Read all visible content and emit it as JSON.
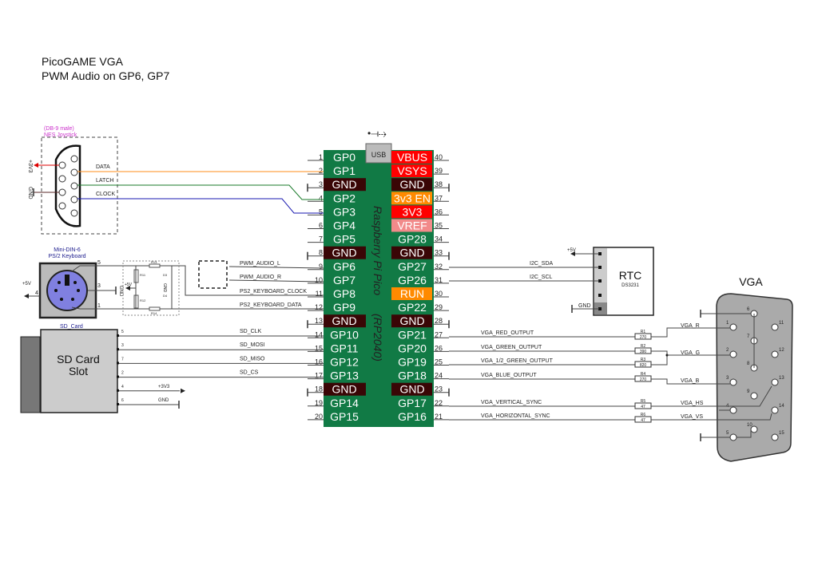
{
  "title": {
    "line1": "PicoGAME VGA",
    "line2": "PWM Audio on GP6, GP7"
  },
  "pico": {
    "label1": "Raspberry Pi Pico",
    "label2": "(RP2040)",
    "usb": "USB",
    "colors": {
      "board": "#117a45",
      "gnd": "#3a0606",
      "power": "#ff0000",
      "enable": "#ff8a00",
      "vref": "#f28a8a"
    },
    "left_pins": [
      {
        "num": "1",
        "name": "GP0",
        "type": "gpio"
      },
      {
        "num": "2",
        "name": "GP1",
        "type": "gpio"
      },
      {
        "num": "3",
        "name": "GND",
        "type": "gnd"
      },
      {
        "num": "4",
        "name": "GP2",
        "type": "gpio"
      },
      {
        "num": "5",
        "name": "GP3",
        "type": "gpio"
      },
      {
        "num": "6",
        "name": "GP4",
        "type": "gpio"
      },
      {
        "num": "7",
        "name": "GP5",
        "type": "gpio"
      },
      {
        "num": "8",
        "name": "GND",
        "type": "gnd"
      },
      {
        "num": "9",
        "name": "GP6",
        "type": "gpio"
      },
      {
        "num": "10",
        "name": "GP7",
        "type": "gpio"
      },
      {
        "num": "11",
        "name": "GP8",
        "type": "gpio"
      },
      {
        "num": "12",
        "name": "GP9",
        "type": "gpio"
      },
      {
        "num": "13",
        "name": "GND",
        "type": "gnd"
      },
      {
        "num": "14",
        "name": "GP10",
        "type": "gpio"
      },
      {
        "num": "15",
        "name": "GP11",
        "type": "gpio"
      },
      {
        "num": "16",
        "name": "GP12",
        "type": "gpio"
      },
      {
        "num": "17",
        "name": "GP13",
        "type": "gpio"
      },
      {
        "num": "18",
        "name": "GND",
        "type": "gnd"
      },
      {
        "num": "19",
        "name": "GP14",
        "type": "gpio"
      },
      {
        "num": "20",
        "name": "GP15",
        "type": "gpio"
      }
    ],
    "right_pins": [
      {
        "num": "40",
        "name": "VBUS",
        "type": "power"
      },
      {
        "num": "39",
        "name": "VSYS",
        "type": "power"
      },
      {
        "num": "38",
        "name": "GND",
        "type": "gnd"
      },
      {
        "num": "37",
        "name": "3v3 EN",
        "type": "enable"
      },
      {
        "num": "36",
        "name": "3V3",
        "type": "power"
      },
      {
        "num": "35",
        "name": "VREF",
        "type": "vref"
      },
      {
        "num": "34",
        "name": "GP28",
        "type": "gpio"
      },
      {
        "num": "33",
        "name": "GND",
        "type": "gnd"
      },
      {
        "num": "32",
        "name": "GP27",
        "type": "gpio"
      },
      {
        "num": "31",
        "name": "GP26",
        "type": "gpio"
      },
      {
        "num": "30",
        "name": "RUN",
        "type": "enable"
      },
      {
        "num": "29",
        "name": "GP22",
        "type": "gpio"
      },
      {
        "num": "28",
        "name": "GND",
        "type": "gnd"
      },
      {
        "num": "27",
        "name": "GP21",
        "type": "gpio"
      },
      {
        "num": "26",
        "name": "GP20",
        "type": "gpio"
      },
      {
        "num": "25",
        "name": "GP19",
        "type": "gpio"
      },
      {
        "num": "24",
        "name": "GP18",
        "type": "gpio"
      },
      {
        "num": "23",
        "name": "GND",
        "type": "gnd"
      },
      {
        "num": "22",
        "name": "GP17",
        "type": "gpio"
      },
      {
        "num": "21",
        "name": "GP16",
        "type": "gpio"
      }
    ]
  },
  "nes": {
    "title1": "(DB-9 male)",
    "title2": "NES Joystick",
    "title_color": "#cc33cc",
    "power": "+3V3",
    "gnd": "GND",
    "signals": [
      {
        "name": "DATA",
        "color": "#ff8c1a"
      },
      {
        "name": "LATCH",
        "color": "#1a7a2a"
      },
      {
        "name": "CLOCK",
        "color": "#1a1ab0"
      }
    ],
    "pin_numbers": [
      "1",
      "2",
      "3",
      "4",
      "5",
      "6",
      "7",
      "8",
      "9"
    ]
  },
  "keyboard": {
    "title1": "Mini-DIN-6",
    "title2": "PS/2 Keyboard",
    "title_color": "#1a1a8c",
    "pins": [
      "5",
      "4",
      "3",
      "1"
    ],
    "power": "+5V",
    "gnd": "GND",
    "filter_power": "+5V",
    "filter_gnd": "GND",
    "parts": [
      "R13",
      "R11",
      "R12",
      "R14",
      "D3",
      "D4"
    ],
    "signals": [
      "PWM_AUDIO_L",
      "PWM_AUDIO_R",
      "PS2_KEYBOARD_CLOCK",
      "PS2_KEYBOARD_DATA"
    ]
  },
  "sdcard": {
    "title": "SD_Card",
    "label1": "SD Card",
    "label2": "Slot",
    "lines": [
      {
        "pin": "5",
        "name": "SD_CLK"
      },
      {
        "pin": "3",
        "name": "SD_MOSI"
      },
      {
        "pin": "7",
        "name": "SD_MISO"
      },
      {
        "pin": "2",
        "name": "SD_CS"
      },
      {
        "pin": "4",
        "name": "+3V3"
      },
      {
        "pin": "6",
        "name": "GND"
      }
    ]
  },
  "rtc": {
    "title": "RTC",
    "chip": "DS3231",
    "power": "+5V",
    "sda": "I2C_SDA",
    "scl": "I2C_SCL",
    "gnd": "GND"
  },
  "vga": {
    "title": "VGA",
    "signals": [
      {
        "name": "VGA_RED_OUTPUT",
        "res": "R1",
        "val": "270",
        "net": "VGA_R"
      },
      {
        "name": "VGA_GREEN_OUTPUT",
        "res": "R2",
        "val": "390",
        "net": "VGA_G"
      },
      {
        "name": "VGA_1/2_GREEN_OUTPUT",
        "res": "R3",
        "val": "820",
        "net": ""
      },
      {
        "name": "VGA_BLUE_OUTPUT",
        "res": "R4",
        "val": "270",
        "net": "VGA_B"
      },
      {
        "name": "VGA_VERTICAL_SYNC",
        "res": "R5",
        "val": "47",
        "net": "VGA_HS"
      },
      {
        "name": "VGA_HORIZONTAL_SYNC",
        "res": "R6",
        "val": "47",
        "net": "VGA_VS"
      }
    ],
    "pin_numbers": [
      "1",
      "2",
      "3",
      "4",
      "5",
      "6",
      "7",
      "8",
      "9",
      "10",
      "11",
      "12",
      "13",
      "14",
      "15"
    ]
  }
}
